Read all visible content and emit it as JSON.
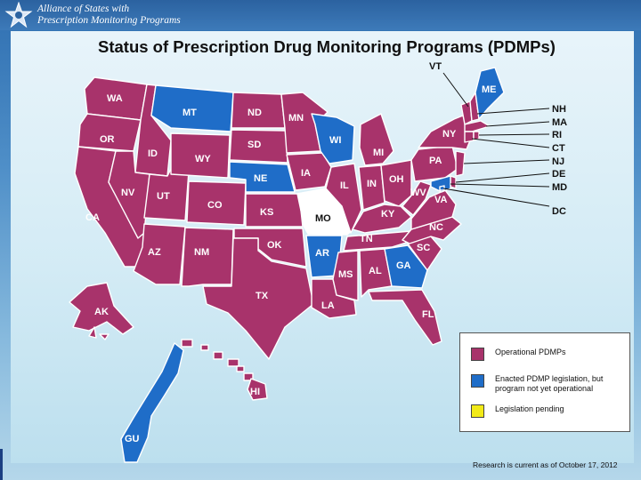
{
  "header": {
    "org_line1": "Alliance of States with",
    "org_line2": "Prescription Monitoring Programs"
  },
  "map": {
    "title": "Status of Prescription Drug Monitoring Programs (PDMPs)",
    "statuses": {
      "operational": [
        "WA",
        "OR",
        "CA",
        "ID",
        "NV",
        "UT",
        "AZ",
        "WY",
        "CO",
        "NM",
        "ND",
        "SD",
        "KS",
        "OK",
        "TX",
        "MN",
        "IA",
        "LA",
        "IL",
        "MS",
        "MI",
        "IN",
        "OH",
        "KY",
        "TN",
        "AL",
        "FL",
        "SC",
        "NC",
        "VA",
        "WV",
        "PA",
        "NY",
        "VT",
        "NH",
        "MA",
        "RI",
        "CT",
        "NJ",
        "DE",
        "AK",
        "HI"
      ],
      "enacted_not_operational": [
        "MT",
        "NE",
        "WI",
        "AR",
        "GA",
        "ME",
        "MD",
        "DC",
        "GU"
      ],
      "pending": [],
      "none": [
        "MO"
      ]
    },
    "colors": {
      "operational": "#a8336b",
      "enacted": "#1f6dc8",
      "pending": "#f2ea18",
      "none": "#ffffff"
    },
    "state_labels": {
      "WA": "WA",
      "OR": "OR",
      "CA": "CA",
      "ID": "ID",
      "NV": "NV",
      "UT": "UT",
      "AZ": "AZ",
      "MT": "MT",
      "WY": "WY",
      "CO": "CO",
      "NM": "NM",
      "ND": "ND",
      "SD": "SD",
      "NE": "NE",
      "KS": "KS",
      "OK": "OK",
      "TX": "TX",
      "MN": "MN",
      "IA": "IA",
      "MO": "MO",
      "AR": "AR",
      "LA": "LA",
      "WI": "WI",
      "IL": "IL",
      "MS": "MS",
      "MI": "MI",
      "IN": "IN",
      "OH": "OH",
      "KY": "KY",
      "TN": "TN",
      "AL": "AL",
      "GA": "GA",
      "FL": "FL",
      "SC": "SC",
      "NC": "NC",
      "VA": "VA",
      "WV": "WV",
      "PA": "PA",
      "NY": "NY",
      "ME": "ME",
      "AK": "AK",
      "HI": "HI",
      "GU": "GU"
    },
    "callouts": [
      "VT",
      "NH",
      "MA",
      "RI",
      "CT",
      "NJ",
      "DE",
      "MD",
      "DC"
    ]
  },
  "legend": {
    "operational": "Operational PDMPs",
    "enacted": "Enacted PDMP legislation, but program not yet operational",
    "pending": "Legislation pending"
  },
  "footnote": "Research is current as of October 17, 2012"
}
